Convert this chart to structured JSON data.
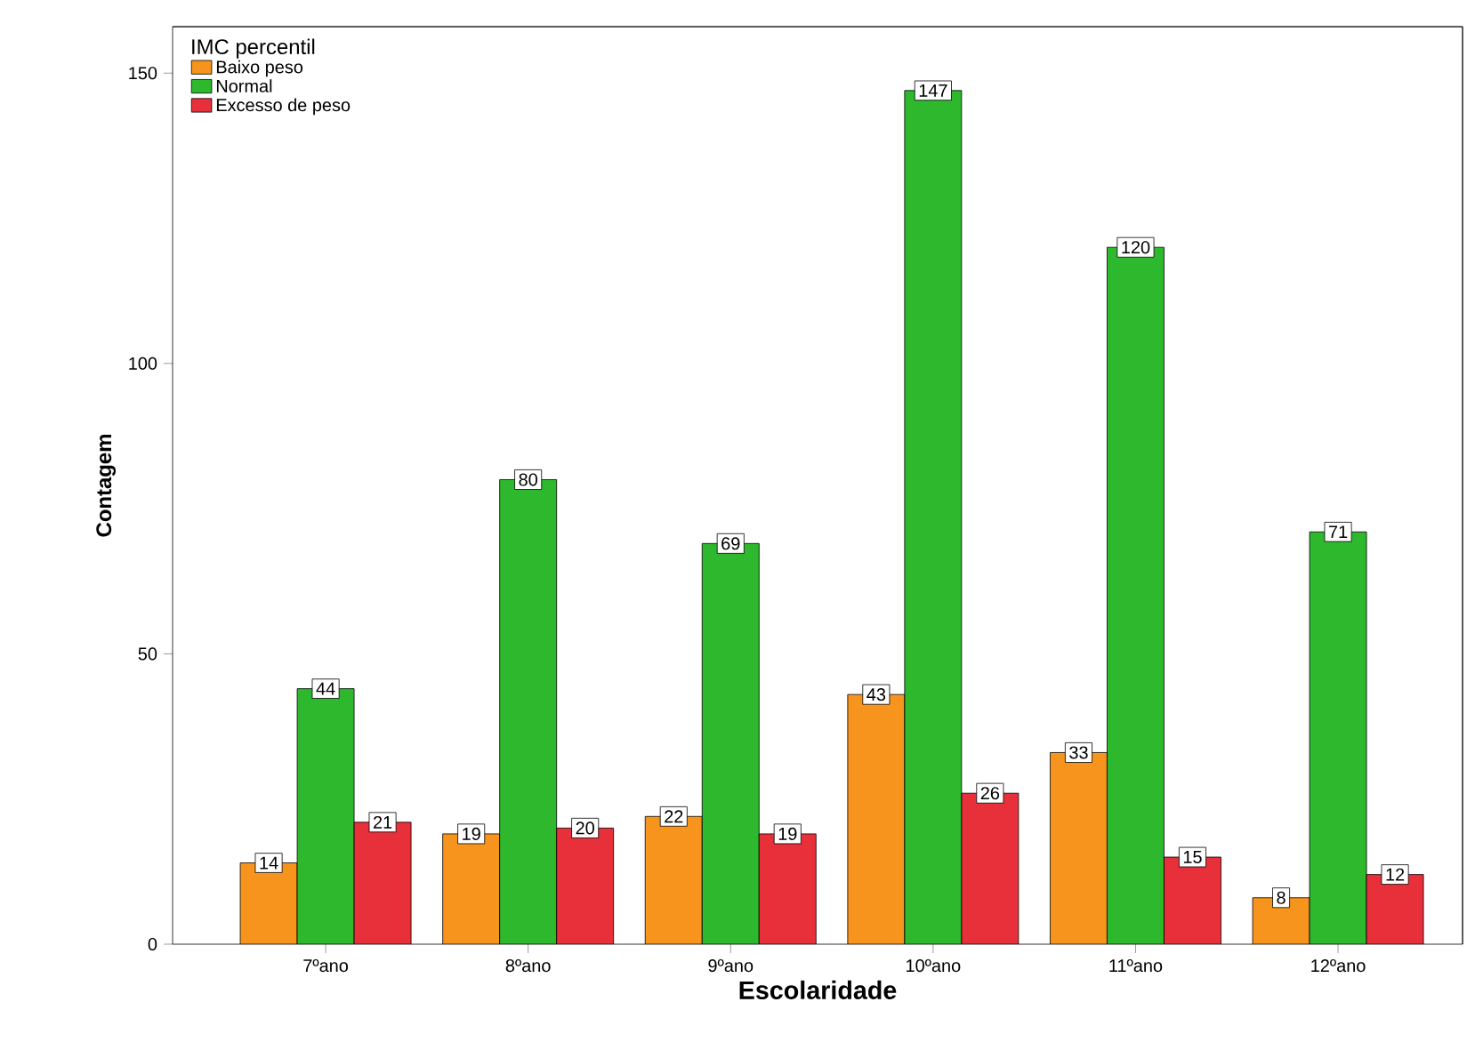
{
  "chart_data": {
    "type": "bar",
    "xlabel": "Escolaridade",
    "ylabel": "Contagem",
    "legend_title": "IMC percentil",
    "categories": [
      "7ºano",
      "8ºano",
      "9ºano",
      "10ºano",
      "11ºano",
      "12ºano"
    ],
    "series": [
      {
        "name": "Baixo peso",
        "color": "#f7941d",
        "values": [
          14,
          19,
          22,
          43,
          33,
          8
        ]
      },
      {
        "name": "Normal",
        "color": "#2db82d",
        "values": [
          44,
          80,
          69,
          147,
          120,
          71
        ]
      },
      {
        "name": "Excesso de peso",
        "color": "#e8303a",
        "values": [
          21,
          20,
          19,
          26,
          15,
          12
        ]
      }
    ],
    "ylim": [
      0,
      158
    ],
    "yticks": [
      0,
      50,
      100,
      150
    ],
    "grid": false,
    "legend": "top left",
    "data_labels": true
  }
}
